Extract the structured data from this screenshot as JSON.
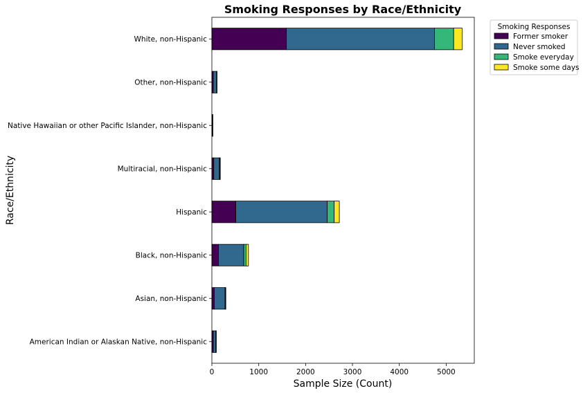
{
  "chart_data": {
    "type": "bar",
    "orientation": "horizontal",
    "stacked": true,
    "title": "Smoking Responses by Race/Ethnicity",
    "xlabel": "Sample Size (Count)",
    "ylabel": "Race/Ethnicity",
    "xlim": [
      0,
      5600
    ],
    "xticks": [
      0,
      1000,
      2000,
      3000,
      4000,
      5000
    ],
    "grid": false,
    "legend": {
      "title": "Smoking Responses",
      "placement": "outside-top-right"
    },
    "categories": [
      "American Indian or Alaskan Native, non-Hispanic",
      "Asian, non-Hispanic",
      "Black, non-Hispanic",
      "Hispanic",
      "Multiracial, non-Hispanic",
      "Native Hawaiian or other Pacific Islander, non-Hispanic",
      "Other, non-Hispanic",
      "White, non-Hispanic"
    ],
    "series": [
      {
        "name": "Former smoker",
        "color": "#440154",
        "values": [
          30,
          50,
          140,
          510,
          40,
          5,
          30,
          1590
        ]
      },
      {
        "name": "Never smoked",
        "color": "#31688e",
        "values": [
          50,
          230,
          540,
          1950,
          120,
          12,
          70,
          3160
        ]
      },
      {
        "name": "Smoke everyday",
        "color": "#35b779",
        "values": [
          8,
          10,
          50,
          150,
          10,
          2,
          6,
          410
        ]
      },
      {
        "name": "Smoke some days",
        "color": "#fde725",
        "values": [
          7,
          8,
          50,
          110,
          10,
          1,
          4,
          180
        ]
      }
    ]
  }
}
